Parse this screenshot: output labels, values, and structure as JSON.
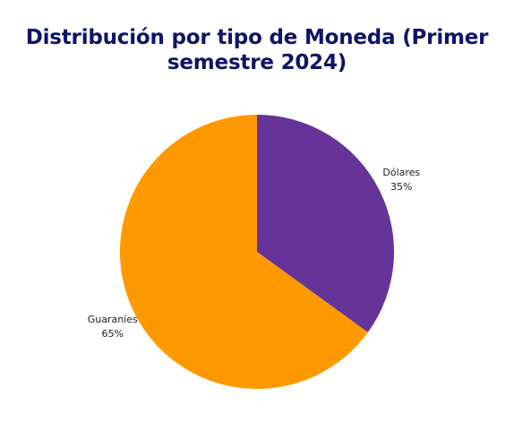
{
  "chart_data": {
    "type": "pie",
    "title": "Distribución por tipo de Moneda (Primer semestre 2024)",
    "slices": [
      {
        "label": "Dólares",
        "value": 35,
        "value_label": "35%",
        "color": "#663399"
      },
      {
        "label": "Guaraníes",
        "value": 65,
        "value_label": "65%",
        "color": "#ff9900"
      }
    ],
    "start_angle": "12 o'clock",
    "direction": "clockwise"
  }
}
